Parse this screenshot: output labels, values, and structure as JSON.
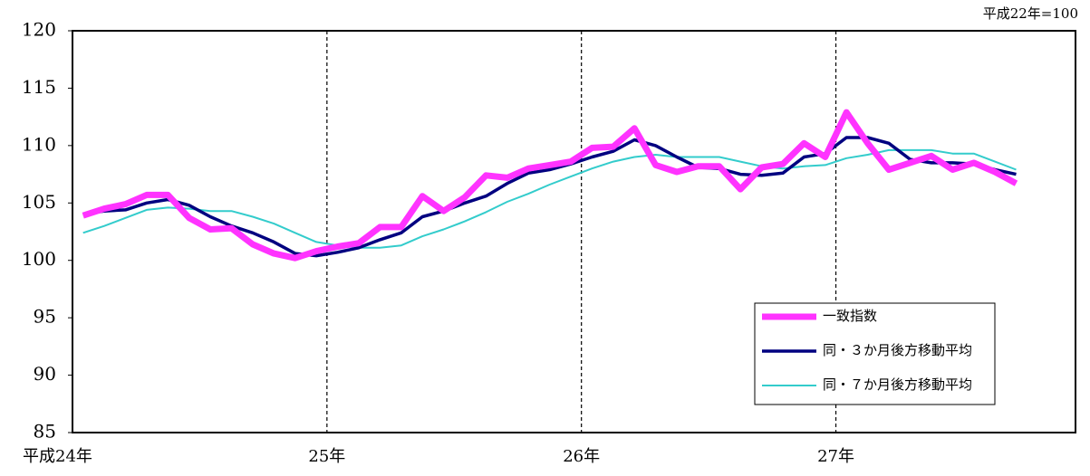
{
  "chart_data": {
    "type": "line",
    "annotation": "平成22年=100",
    "x": [
      0.5,
      1.5,
      2.5,
      3.5,
      4.5,
      5.5,
      6.5,
      7.5,
      8.5,
      9.5,
      10.5,
      11.5,
      12.5,
      13.5,
      14.5,
      15.5,
      16.5,
      17.5,
      18.5,
      19.5,
      20.5,
      21.5,
      22.5,
      23.5,
      24.5,
      25.5,
      26.5,
      27.5,
      28.5,
      29.5,
      30.5,
      31.5,
      32.5,
      33.5,
      34.5,
      35.5,
      36.5,
      37.5,
      38.5,
      39.5,
      40.5,
      41.5,
      42.5,
      43.5,
      44.5
    ],
    "xlim": [
      0,
      47.3
    ],
    "xticks": [
      {
        "value": 0,
        "label": "平成24年"
      },
      {
        "value": 12,
        "label": "25年"
      },
      {
        "value": 24,
        "label": "26年"
      },
      {
        "value": 36,
        "label": "27年"
      }
    ],
    "ylim": [
      85,
      120
    ],
    "yticks": [
      85,
      90,
      95,
      100,
      105,
      110,
      115,
      120
    ],
    "vertical_grid": "dashed",
    "legend": "lower-right",
    "series": [
      {
        "name": "一致指数",
        "color": "#ff33ff",
        "width": 7,
        "values": [
          103.9,
          104.5,
          104.9,
          105.7,
          105.7,
          103.7,
          102.7,
          102.8,
          101.4,
          100.6,
          100.2,
          100.8,
          101.2,
          101.5,
          102.9,
          102.9,
          105.6,
          104.3,
          105.5,
          107.4,
          107.2,
          108.0,
          108.3,
          108.6,
          109.8,
          109.9,
          111.5,
          108.3,
          107.7,
          108.2,
          108.2,
          106.2,
          108.1,
          108.4,
          110.2,
          109.0,
          112.9,
          110.2,
          107.9,
          108.5,
          109.1,
          107.9,
          108.5,
          107.7,
          106.7
        ]
      },
      {
        "name": "同・３か月後方移動平均",
        "color": "#000080",
        "width": 3.5,
        "values": [
          104.0,
          104.3,
          104.4,
          105.0,
          105.3,
          104.8,
          103.8,
          103.0,
          102.4,
          101.6,
          100.6,
          100.4,
          100.7,
          101.1,
          101.8,
          102.4,
          103.8,
          104.3,
          105.0,
          105.6,
          106.7,
          107.6,
          107.9,
          108.4,
          109.0,
          109.5,
          110.5,
          110.0,
          109.0,
          108.1,
          108.0,
          107.5,
          107.4,
          107.6,
          109.0,
          109.3,
          110.7,
          110.7,
          110.2,
          108.8,
          108.5,
          108.5,
          108.4,
          107.9,
          107.5
        ]
      },
      {
        "name": "同・７か月後方移動平均",
        "color": "#33cccc",
        "width": 2,
        "values": [
          102.4,
          103.0,
          103.7,
          104.4,
          104.6,
          104.5,
          104.3,
          104.3,
          103.8,
          103.2,
          102.4,
          101.6,
          101.3,
          101.1,
          101.1,
          101.3,
          102.1,
          102.7,
          103.4,
          104.2,
          105.1,
          105.8,
          106.6,
          107.3,
          108.0,
          108.6,
          109.0,
          109.2,
          109.0,
          109.0,
          109.0,
          108.6,
          108.2,
          108.0,
          108.2,
          108.3,
          108.9,
          109.2,
          109.6,
          109.6,
          109.6,
          109.3,
          109.3,
          108.6,
          107.9
        ]
      }
    ]
  }
}
